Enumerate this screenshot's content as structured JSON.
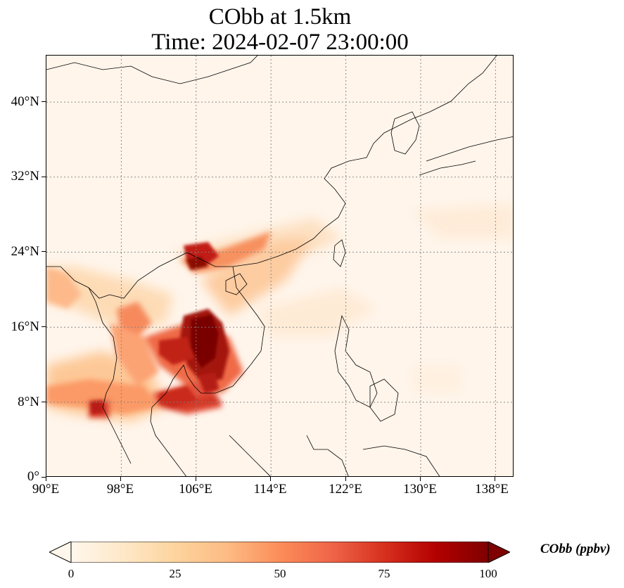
{
  "title": {
    "line1": "CObb at 1.5km",
    "line2": "Time: 2024-02-07 23:00:00"
  },
  "map": {
    "lon_range": [
      90,
      140
    ],
    "lat_range": [
      0,
      45
    ],
    "lat_ticks": [
      "0°",
      "8°N",
      "16°N",
      "24°N",
      "32°N",
      "40°N"
    ],
    "lon_ticks": [
      "90°E",
      "98°E",
      "106°E",
      "114°E",
      "122°E",
      "130°E",
      "138°E"
    ],
    "gridlines": "dotted",
    "colormap": "OrRd",
    "high_concentration_regions": [
      "Indochina",
      "Southern China",
      "Gulf of Thailand"
    ]
  },
  "colorbar": {
    "label": "CObb (ppbv)",
    "ticks": [
      "0",
      "25",
      "50",
      "75",
      "100"
    ],
    "min": 0,
    "max": 100,
    "extend": "both",
    "colors": [
      "#fff7ec",
      "#fee8c8",
      "#fdd49e",
      "#fdbb84",
      "#fc8d59",
      "#ef6548",
      "#d7301f",
      "#b30000",
      "#7f0000"
    ]
  }
}
